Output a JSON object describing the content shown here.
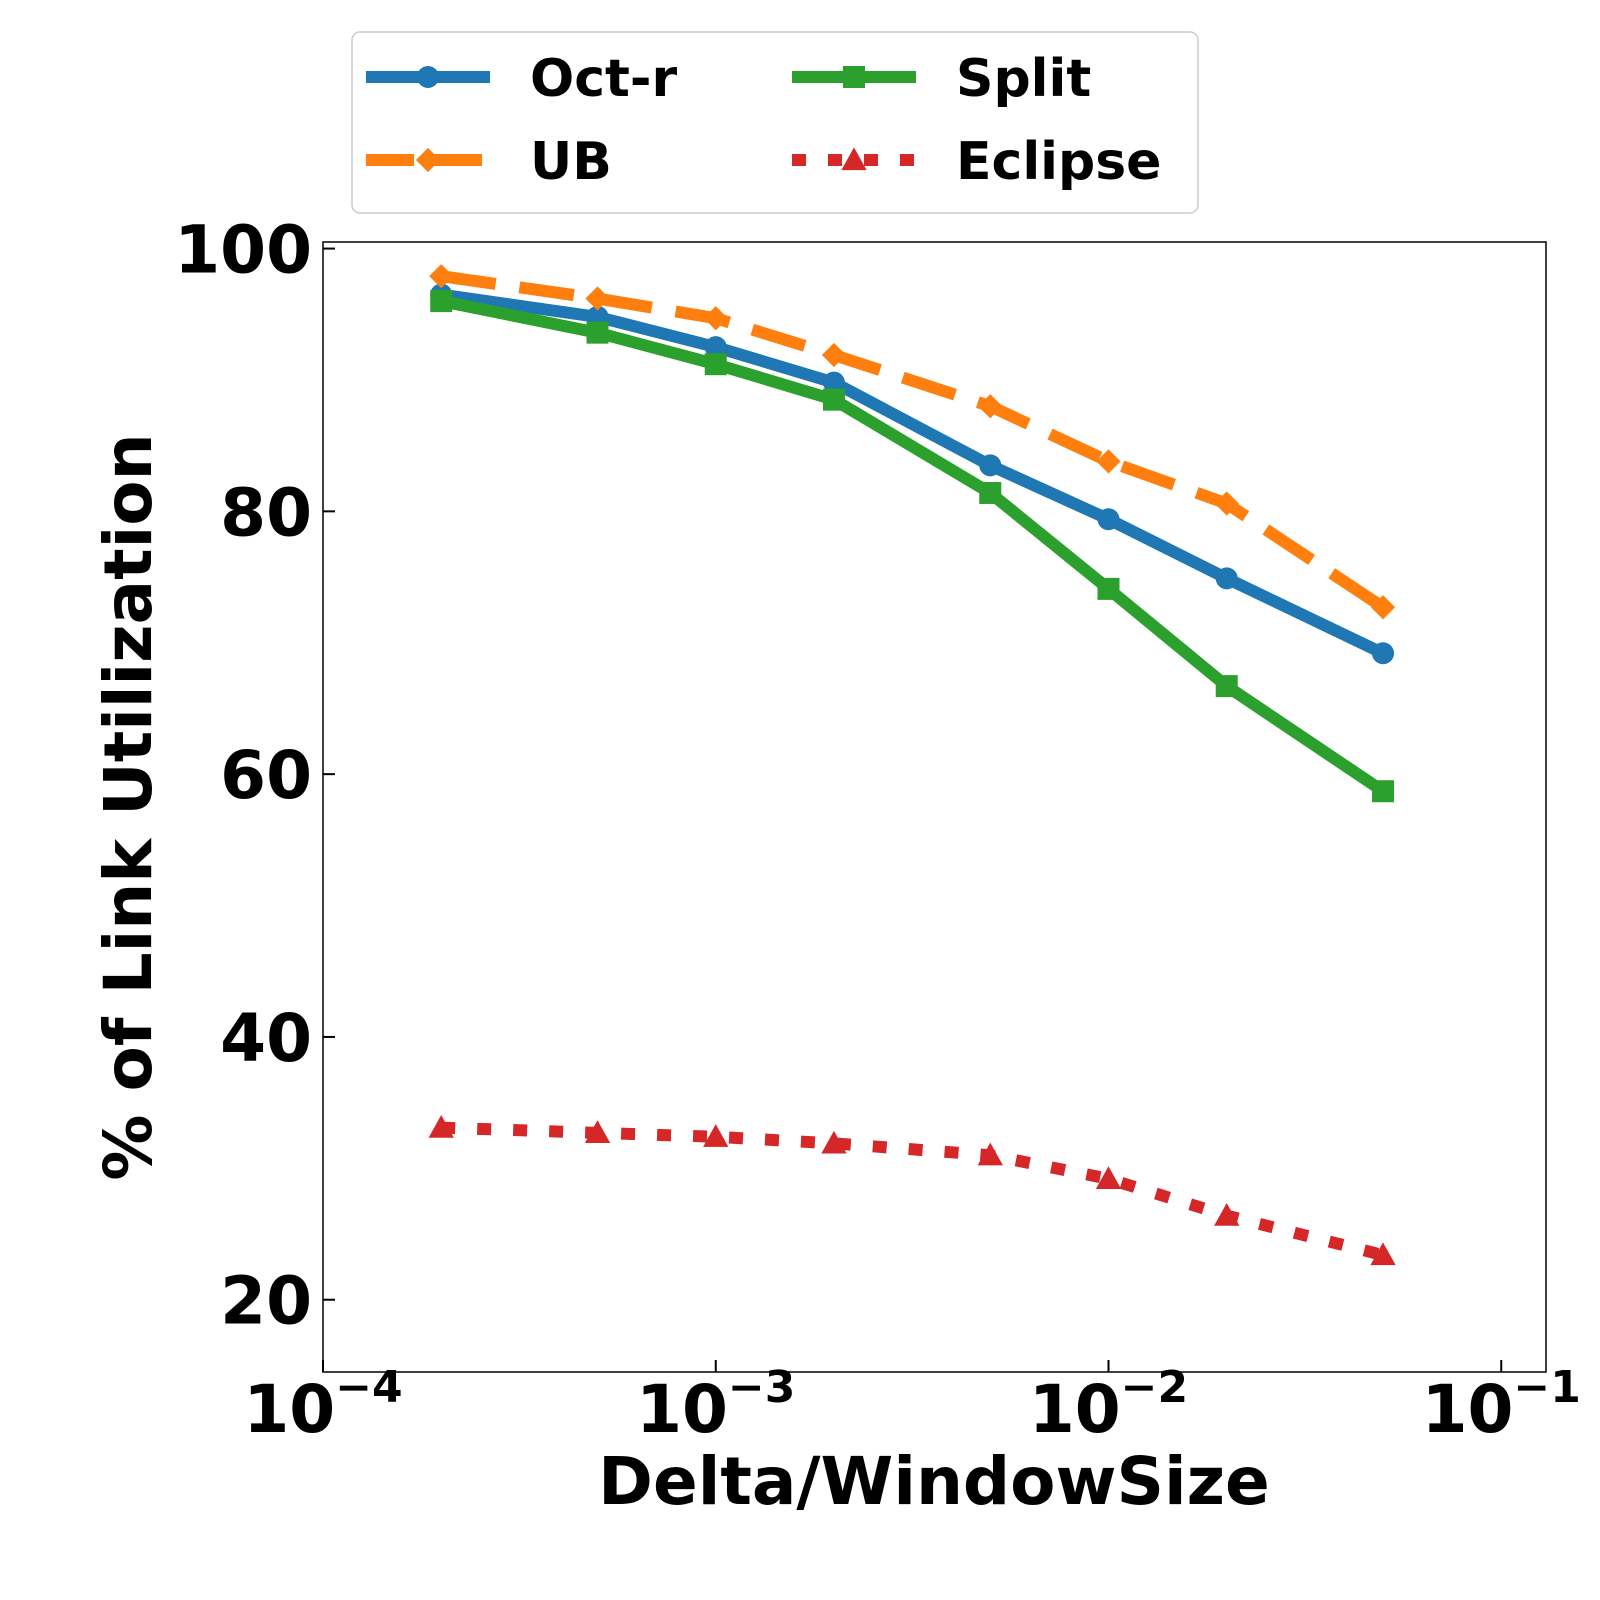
{
  "chart_data": {
    "type": "line",
    "title": "",
    "xlabel": "Delta/WindowSize",
    "ylabel": "% of Link Utilization",
    "xscale": "log",
    "xlim": [
      0.0001,
      0.13
    ],
    "ylim": [
      14.5,
      100.5
    ],
    "x_ticks": [
      {
        "value": 0.0001,
        "base": "10",
        "exp": "−4"
      },
      {
        "value": 0.001,
        "base": "10",
        "exp": "−3"
      },
      {
        "value": 0.01,
        "base": "10",
        "exp": "−2"
      },
      {
        "value": 0.1,
        "base": "10",
        "exp": "−1"
      }
    ],
    "y_ticks": [
      20,
      40,
      60,
      80,
      100
    ],
    "grid": false,
    "legend": {
      "placement": "top",
      "columns": 2
    },
    "x": [
      0.0002,
      0.0005,
      0.001,
      0.002,
      0.005,
      0.01,
      0.02,
      0.05
    ],
    "series": [
      {
        "name": "Oct-r",
        "color": "#1f77b4",
        "style": "solid",
        "marker": "circle",
        "values": [
          96.5,
          94.8,
          92.5,
          89.8,
          83.5,
          79.4,
          74.9,
          69.2
        ]
      },
      {
        "name": "UB",
        "color": "#ff7f0e",
        "style": "dashed",
        "marker": "diamond",
        "values": [
          97.9,
          96.2,
          94.7,
          91.9,
          88.0,
          83.8,
          80.6,
          72.7
        ]
      },
      {
        "name": "Split",
        "color": "#2ca02c",
        "style": "solid",
        "marker": "square",
        "values": [
          96.0,
          93.6,
          91.2,
          88.5,
          81.4,
          74.1,
          66.7,
          58.7
        ]
      },
      {
        "name": "Eclipse",
        "color": "#d62728",
        "style": "dotted",
        "marker": "triangle",
        "values": [
          33.1,
          32.7,
          32.4,
          31.9,
          31.0,
          29.2,
          26.4,
          23.4
        ]
      }
    ]
  }
}
